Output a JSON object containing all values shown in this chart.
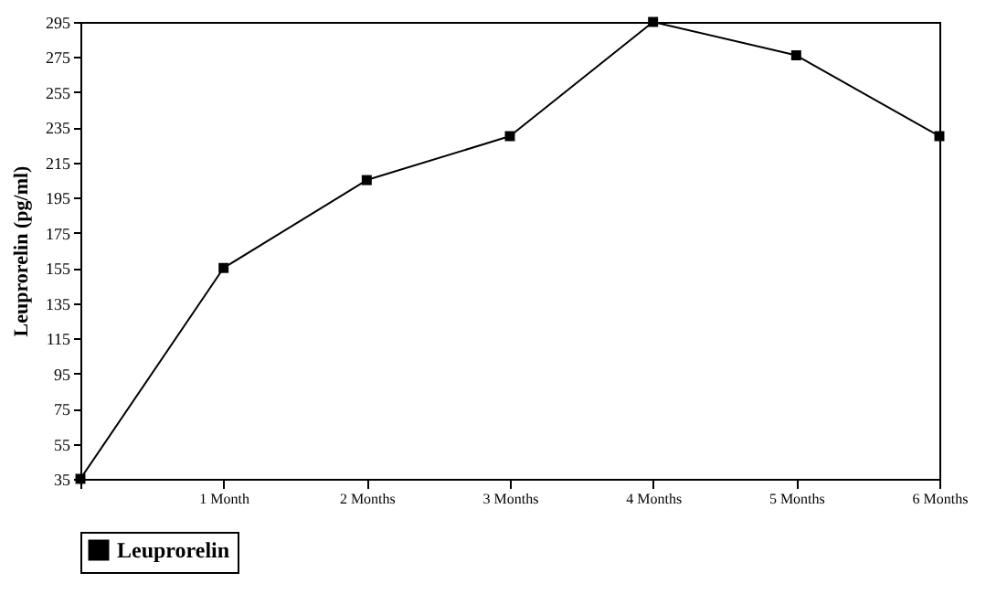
{
  "chart_data": {
    "type": "line",
    "ylabel": "Leuprorelin  (pg/ml)",
    "categories": [
      null,
      "1 Month",
      "2 Months",
      "3 Months",
      "4 Months",
      "5 Months",
      "6 Months"
    ],
    "series": [
      {
        "name": "Leuprorelin",
        "color": "#000000",
        "values": [
          35,
          155,
          205,
          230,
          295,
          276,
          230
        ]
      }
    ],
    "ylim": [
      35,
      295
    ],
    "yticks": [
      35,
      55,
      75,
      95,
      115,
      135,
      155,
      175,
      195,
      215,
      235,
      255,
      275,
      295
    ],
    "grid": false,
    "legend": "bottom",
    "marker": "square",
    "line_style": "solid"
  }
}
